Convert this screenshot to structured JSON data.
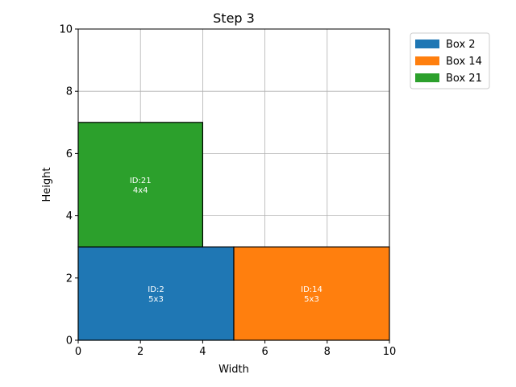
{
  "chart_data": {
    "type": "bar",
    "title": "Step 3",
    "xlabel": "Width",
    "ylabel": "Height",
    "xlim": [
      0,
      10
    ],
    "ylim": [
      0,
      10
    ],
    "xticks": [
      0,
      2,
      4,
      6,
      8,
      10
    ],
    "yticks": [
      0,
      2,
      4,
      6,
      8,
      10
    ],
    "grid": true,
    "legend_position": "outside-top-right",
    "series": [
      {
        "name": "Box 2",
        "color": "#1f77b4",
        "x": 0,
        "y": 0,
        "width": 5,
        "height": 3,
        "label_id": "ID:2",
        "label_size": "5x3"
      },
      {
        "name": "Box 14",
        "color": "#ff7f0e",
        "x": 5,
        "y": 0,
        "width": 5,
        "height": 3,
        "label_id": "ID:14",
        "label_size": "5x3"
      },
      {
        "name": "Box 21",
        "color": "#2ca02c",
        "x": 0,
        "y": 3,
        "width": 4,
        "height": 4,
        "label_id": "ID:21",
        "label_size": "4x4"
      }
    ]
  }
}
